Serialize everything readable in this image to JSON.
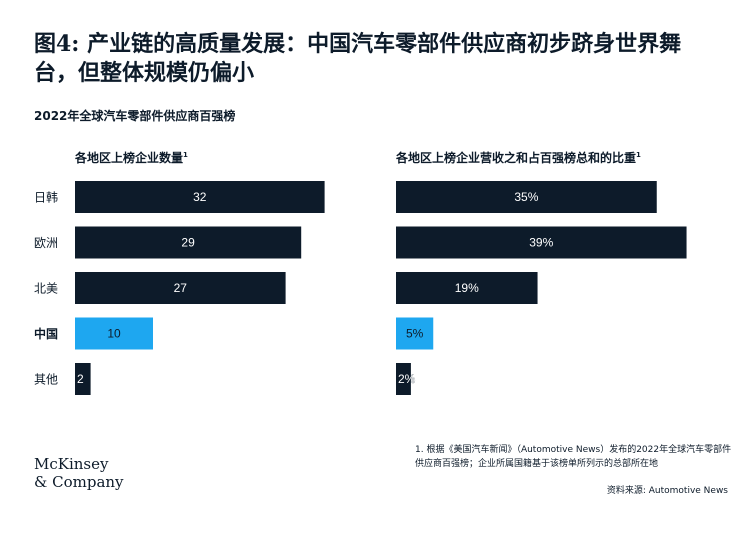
{
  "title": "图4: 产业链的高质量发展：中国汽车零部件供应商初步跻身世界舞台，但整体规模仍偏小",
  "subtitle": "2022年全球汽车零部件供应商百强榜",
  "logo": {
    "line1": "McKinsey",
    "line2": "& Company"
  },
  "footnote": "1. 根据《美国汽车新闻》（Automotive News）发布的2022年全球汽车零部件供应商百强榜；企业所属国籍基于该榜单所列示的总部所在地",
  "source": "资料来源: Automotive News",
  "colors": {
    "dark": "#0d1b2a",
    "highlight": "#1ea7f0"
  },
  "chart_data": [
    {
      "type": "bar",
      "orientation": "horizontal",
      "title": "各地区上榜企业数量",
      "title_sup": "1",
      "categories": [
        "日韩",
        "欧洲",
        "北美",
        "中国",
        "其他"
      ],
      "values": [
        32,
        29,
        27,
        10,
        2
      ],
      "labels": [
        "32",
        "29",
        "27",
        "10",
        "2"
      ],
      "highlight": "中国",
      "xlim": [
        0,
        40
      ]
    },
    {
      "type": "bar",
      "orientation": "horizontal",
      "title": "各地区上榜企业营收之和占百强榜总和的比重",
      "title_sup": "1",
      "categories": [
        "日韩",
        "欧洲",
        "北美",
        "中国",
        "其他"
      ],
      "values": [
        35,
        39,
        19,
        5,
        2
      ],
      "labels": [
        "35%",
        "39%",
        "19%",
        "5%",
        "2%"
      ],
      "highlight": "中国",
      "xlim": [
        0,
        40
      ]
    }
  ]
}
